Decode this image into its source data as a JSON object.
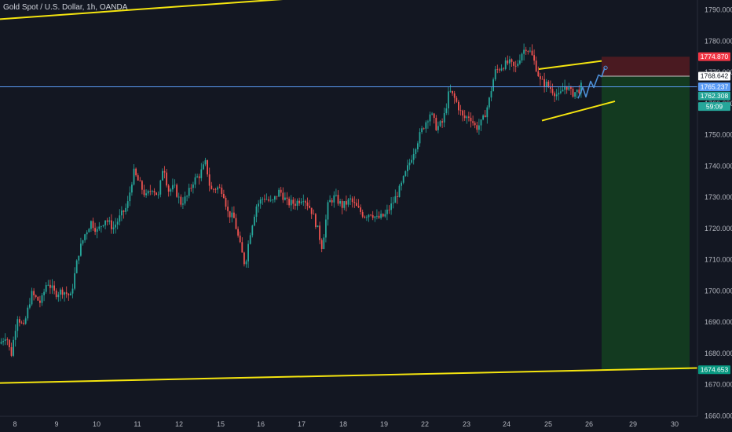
{
  "header": {
    "title": "Gold Spot / U.S. Dollar, 1h, OANDA"
  },
  "colors": {
    "background": "#131722",
    "axis_text": "#b2b5be",
    "up": "#26a69a",
    "down": "#ef5350",
    "trendline": "#f5e50f",
    "horizontal_line": "#5b9cf6",
    "projection": "#4d8fd6",
    "stop_zone": "#4a1a21",
    "target_zone": "#133a20"
  },
  "chart_data": {
    "type": "candlestick",
    "title": "Gold Spot / U.S. Dollar, 1h, OANDA",
    "ylim": [
      1660,
      1795
    ],
    "y_ticks": [
      1660,
      1670,
      1680,
      1690,
      1700,
      1710,
      1720,
      1730,
      1740,
      1750,
      1760,
      1770,
      1780,
      1790
    ],
    "y_tick_labels": [
      "1660.000",
      "1670.000",
      "1680.000",
      "1690.000",
      "1700.000",
      "1710.000",
      "1720.000",
      "1730.000",
      "1740.000",
      "1750.000",
      "1760.000",
      "1770.000",
      "1780.000",
      "1790.000"
    ],
    "x_tick_labels": [
      "8",
      "9",
      "10",
      "11",
      "12",
      "15",
      "16",
      "17",
      "18",
      "19",
      "22",
      "23",
      "24",
      "25",
      "26",
      "29",
      "30"
    ],
    "grid": false,
    "price_anchors": [
      [
        0,
        1683
      ],
      [
        8,
        1686
      ],
      [
        14,
        1679
      ],
      [
        22,
        1692
      ],
      [
        30,
        1688
      ],
      [
        40,
        1699
      ],
      [
        52,
        1696
      ],
      [
        60,
        1703
      ],
      [
        70,
        1699
      ],
      [
        80,
        1700
      ],
      [
        90,
        1698
      ],
      [
        100,
        1712
      ],
      [
        108,
        1718
      ],
      [
        116,
        1722
      ],
      [
        124,
        1719
      ],
      [
        134,
        1723
      ],
      [
        144,
        1720
      ],
      [
        154,
        1724
      ],
      [
        162,
        1727
      ],
      [
        170,
        1738
      ],
      [
        178,
        1734
      ],
      [
        186,
        1730
      ],
      [
        194,
        1733
      ],
      [
        202,
        1730
      ],
      [
        208,
        1741
      ],
      [
        214,
        1732
      ],
      [
        222,
        1733
      ],
      [
        230,
        1728
      ],
      [
        238,
        1730
      ],
      [
        246,
        1735
      ],
      [
        254,
        1737
      ],
      [
        262,
        1741
      ],
      [
        268,
        1732
      ],
      [
        276,
        1733
      ],
      [
        284,
        1732
      ],
      [
        290,
        1725
      ],
      [
        298,
        1723
      ],
      [
        306,
        1714
      ],
      [
        312,
        1708
      ],
      [
        318,
        1718
      ],
      [
        326,
        1727
      ],
      [
        336,
        1730
      ],
      [
        346,
        1728
      ],
      [
        356,
        1732
      ],
      [
        366,
        1728
      ],
      [
        376,
        1728
      ],
      [
        386,
        1730
      ],
      [
        396,
        1726
      ],
      [
        404,
        1720
      ],
      [
        410,
        1714
      ],
      [
        418,
        1728
      ],
      [
        426,
        1730
      ],
      [
        436,
        1727
      ],
      [
        446,
        1729
      ],
      [
        456,
        1726
      ],
      [
        464,
        1724
      ],
      [
        472,
        1725
      ],
      [
        480,
        1723
      ],
      [
        490,
        1724
      ],
      [
        500,
        1728
      ],
      [
        510,
        1733
      ],
      [
        520,
        1740
      ],
      [
        530,
        1747
      ],
      [
        540,
        1753
      ],
      [
        548,
        1757
      ],
      [
        556,
        1752
      ],
      [
        564,
        1754
      ],
      [
        572,
        1764
      ],
      [
        580,
        1761
      ],
      [
        590,
        1755
      ],
      [
        598,
        1756
      ],
      [
        606,
        1752
      ],
      [
        614,
        1754
      ],
      [
        622,
        1760
      ],
      [
        630,
        1770
      ],
      [
        640,
        1772
      ],
      [
        648,
        1773
      ],
      [
        656,
        1771
      ],
      [
        664,
        1776
      ],
      [
        670,
        1778
      ],
      [
        676,
        1776
      ],
      [
        682,
        1772
      ],
      [
        688,
        1767
      ],
      [
        696,
        1766
      ],
      [
        704,
        1764
      ],
      [
        712,
        1762
      ],
      [
        720,
        1766
      ],
      [
        728,
        1763
      ],
      [
        736,
        1764
      ],
      [
        742,
        1766
      ]
    ],
    "trendlines": [
      {
        "from": [
          0,
          1786.9
        ],
        "to": [
          888,
          1802.6
        ]
      },
      {
        "from": [
          0,
          1670.4
        ],
        "to": [
          888,
          1675.2
        ]
      },
      {
        "from": [
          686,
          1770.9
        ],
        "to": [
          766,
          1773.5
        ]
      },
      {
        "from": [
          690,
          1754.4
        ],
        "to": [
          783,
          1760.6
        ]
      }
    ],
    "horizontal_line": 1765.237,
    "projection_path": [
      [
        736,
        1761.5
      ],
      [
        742,
        1765.0
      ],
      [
        746,
        1762.0
      ],
      [
        752,
        1767.0
      ],
      [
        756,
        1765.0
      ],
      [
        762,
        1769.0
      ],
      [
        766,
        1768.5
      ],
      [
        770,
        1771.3
      ]
    ],
    "position": {
      "entry": 1768.642,
      "stop": 1774.87,
      "target": 1674.653,
      "x_range": [
        766,
        878
      ]
    },
    "price_labels": [
      {
        "value": "1774.870",
        "price": 1774.87,
        "bg": "#f23645",
        "color": "#ffffff"
      },
      {
        "value": "1768.642",
        "price": 1768.642,
        "bg": "#ffffff",
        "color": "#131722"
      },
      {
        "value": "1765.237",
        "price": 1765.237,
        "bg": "#5b9cf6",
        "color": "#ffffff"
      },
      {
        "value": "1762.308",
        "price": 1762.308,
        "bg": "#26a69a",
        "color": "#ffffff"
      },
      {
        "value": "59:09",
        "price": 1758.9,
        "bg": "#26a69a",
        "color": "#ffffff"
      },
      {
        "value": "1674.653",
        "price": 1674.653,
        "bg": "#089981",
        "color": "#ffffff"
      }
    ]
  }
}
